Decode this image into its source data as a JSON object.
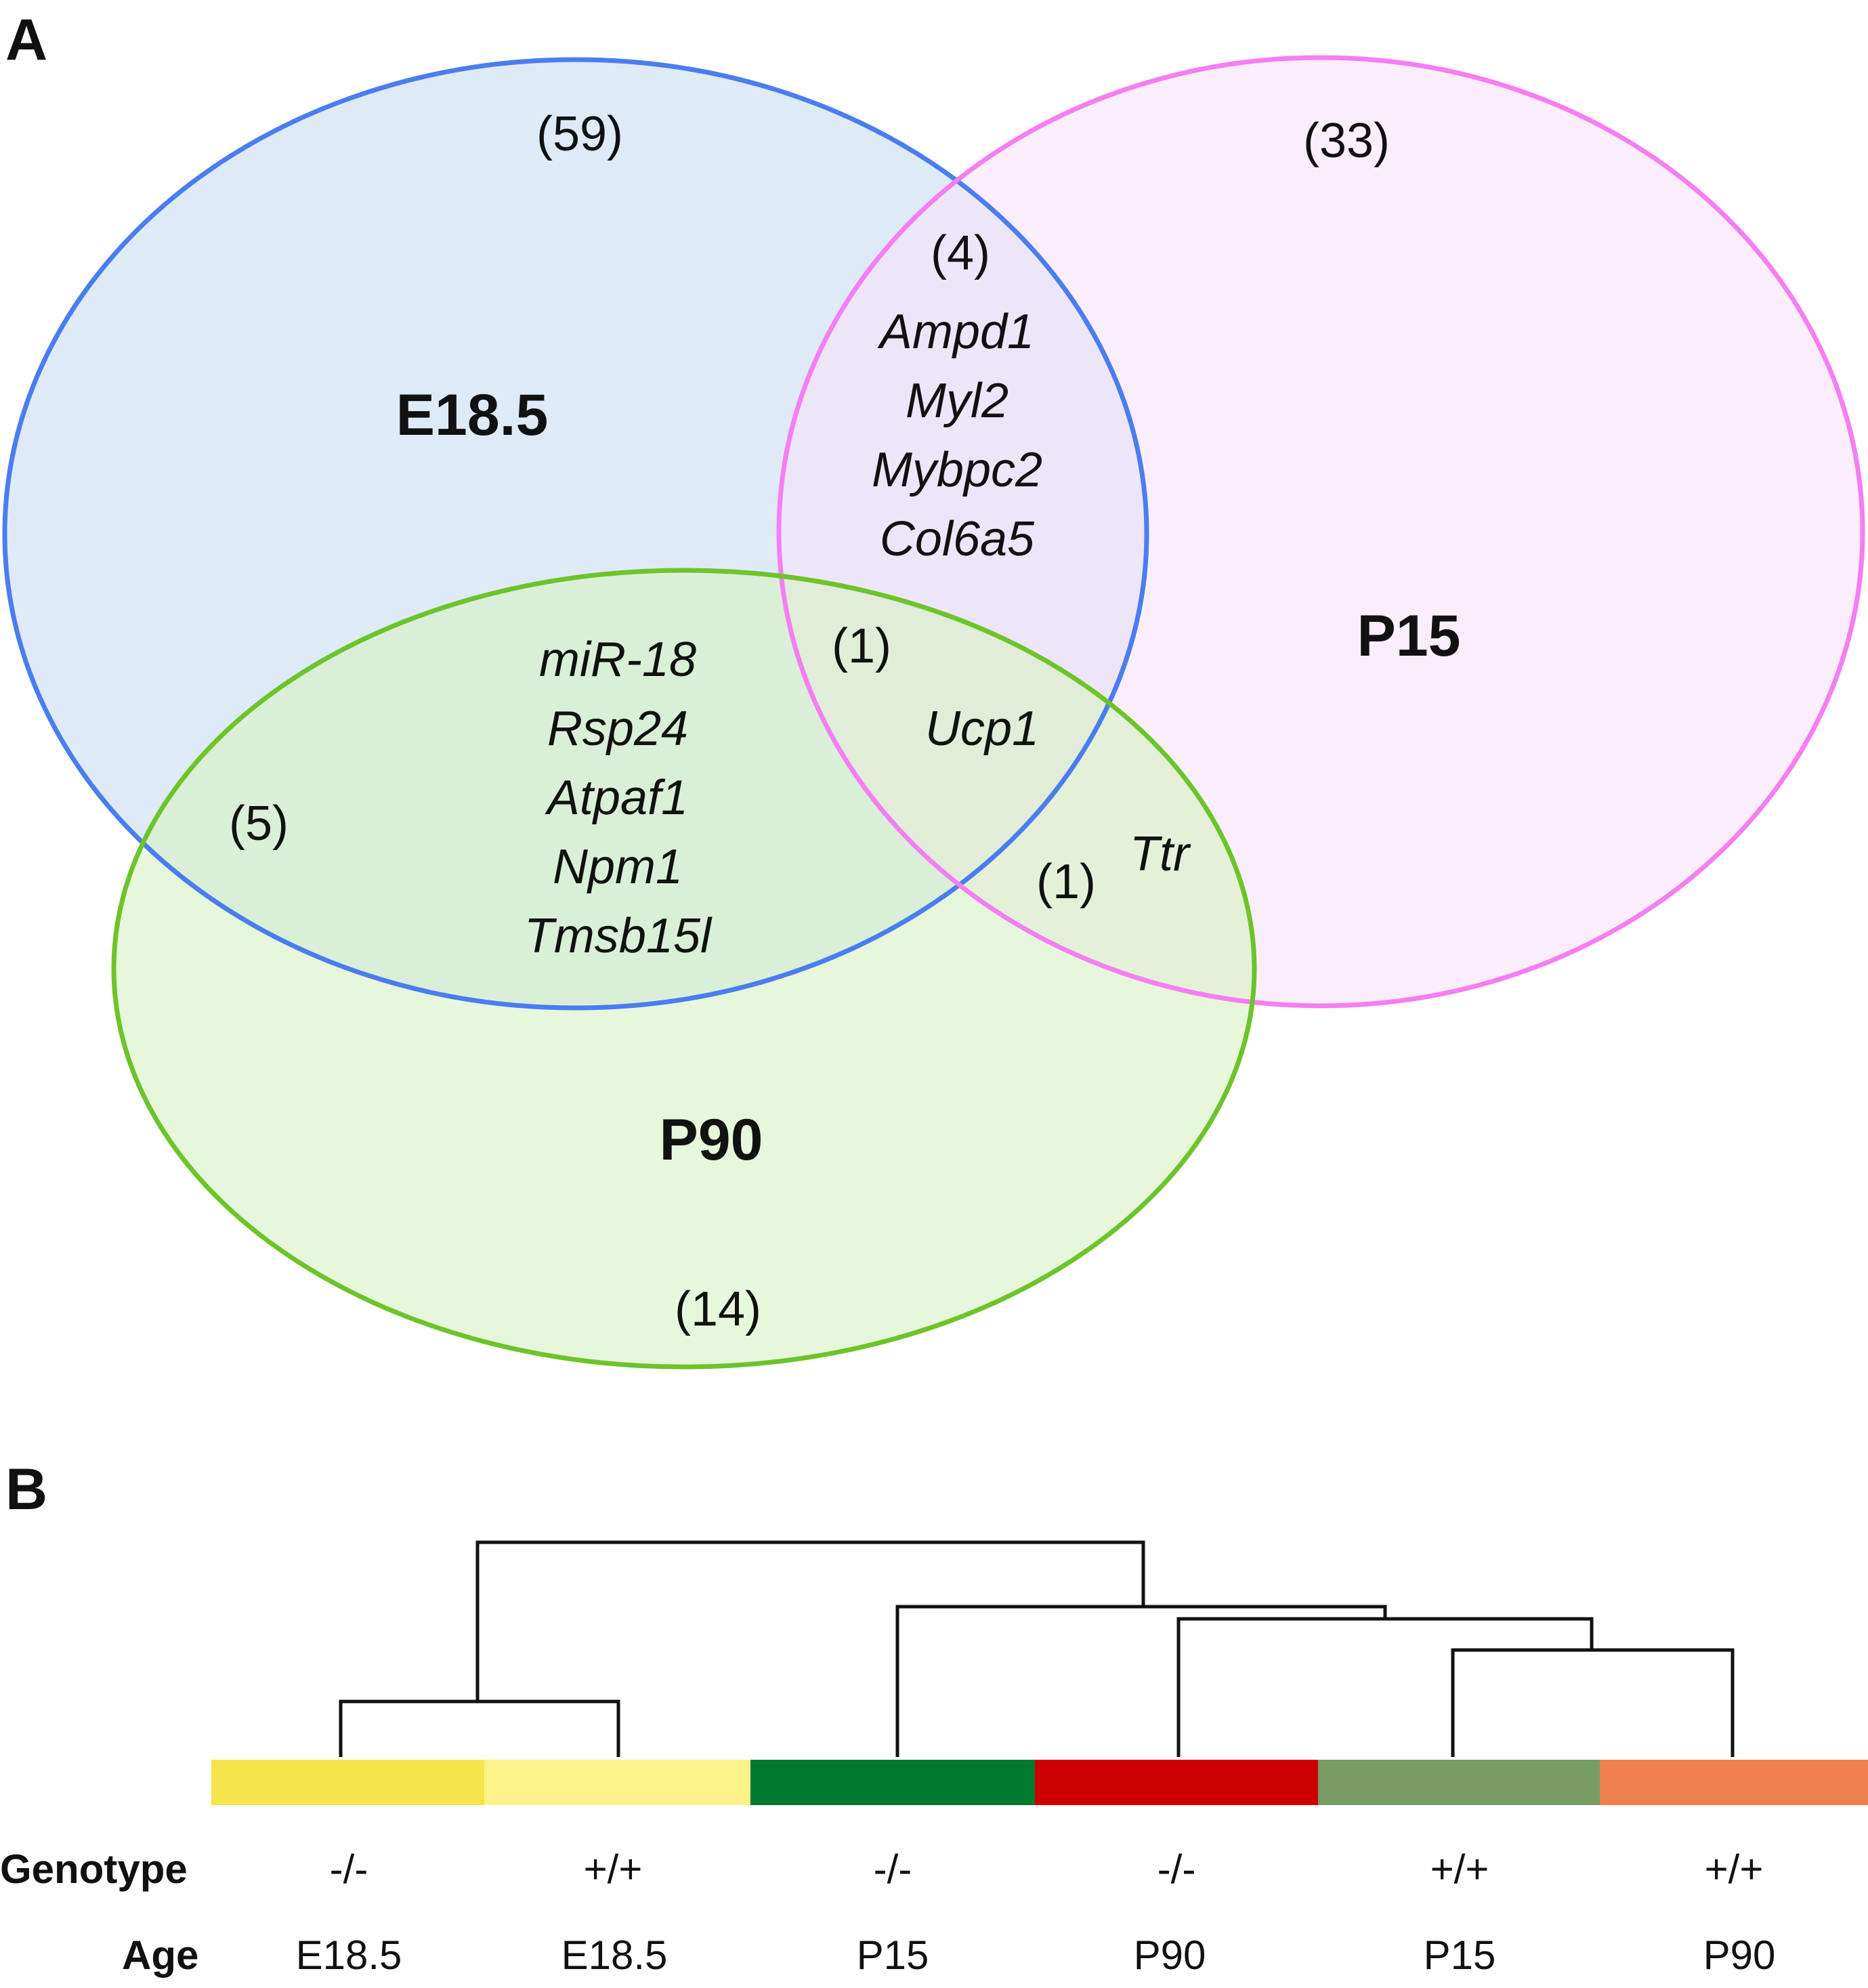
{
  "panels": {
    "a": "A",
    "b": "B"
  },
  "venn": {
    "sets": [
      {
        "label": "E18.5",
        "stroke": "#4a7df0",
        "fill": "#c9dcf2"
      },
      {
        "label": "P15",
        "stroke": "#f47ef2",
        "fill": "#f6e2f8"
      },
      {
        "label": "P90",
        "stroke": "#6cc42a",
        "fill": "#d7f1c3"
      }
    ],
    "counts": {
      "e18_only": "(59)",
      "p15_only": "(33)",
      "e18_p15": "(4)",
      "all_three": "(1)",
      "e18_p90": "(5)",
      "p15_p90": "(1)",
      "p90_only": "(14)"
    },
    "genes": {
      "e18_p15": [
        "Ampd1",
        "Myl2",
        "Mybpc2",
        "Col6a5"
      ],
      "e18_p90": [
        "miR-18",
        "Rsp24",
        "Atpaf1",
        "Npm1",
        "Tmsb15l"
      ],
      "all_three": [
        "Ucp1"
      ],
      "p15_p90": [
        "Ttr"
      ]
    }
  },
  "dendrogram": {
    "row_labels": {
      "genotype": "Genotype",
      "age": "Age"
    },
    "samples": [
      {
        "genotype": "-/-",
        "age": "E18.5",
        "color": "#f5e44b"
      },
      {
        "genotype": "+/+",
        "age": "E18.5",
        "color": "#fdf18a"
      },
      {
        "genotype": "-/-",
        "age": "P15",
        "color": "#007a2e"
      },
      {
        "genotype": "-/-",
        "age": "P90",
        "color": "#cc0000"
      },
      {
        "genotype": "+/+",
        "age": "P15",
        "color": "#779d62"
      },
      {
        "genotype": "+/+",
        "age": "P90",
        "color": "#ee814f"
      }
    ]
  }
}
